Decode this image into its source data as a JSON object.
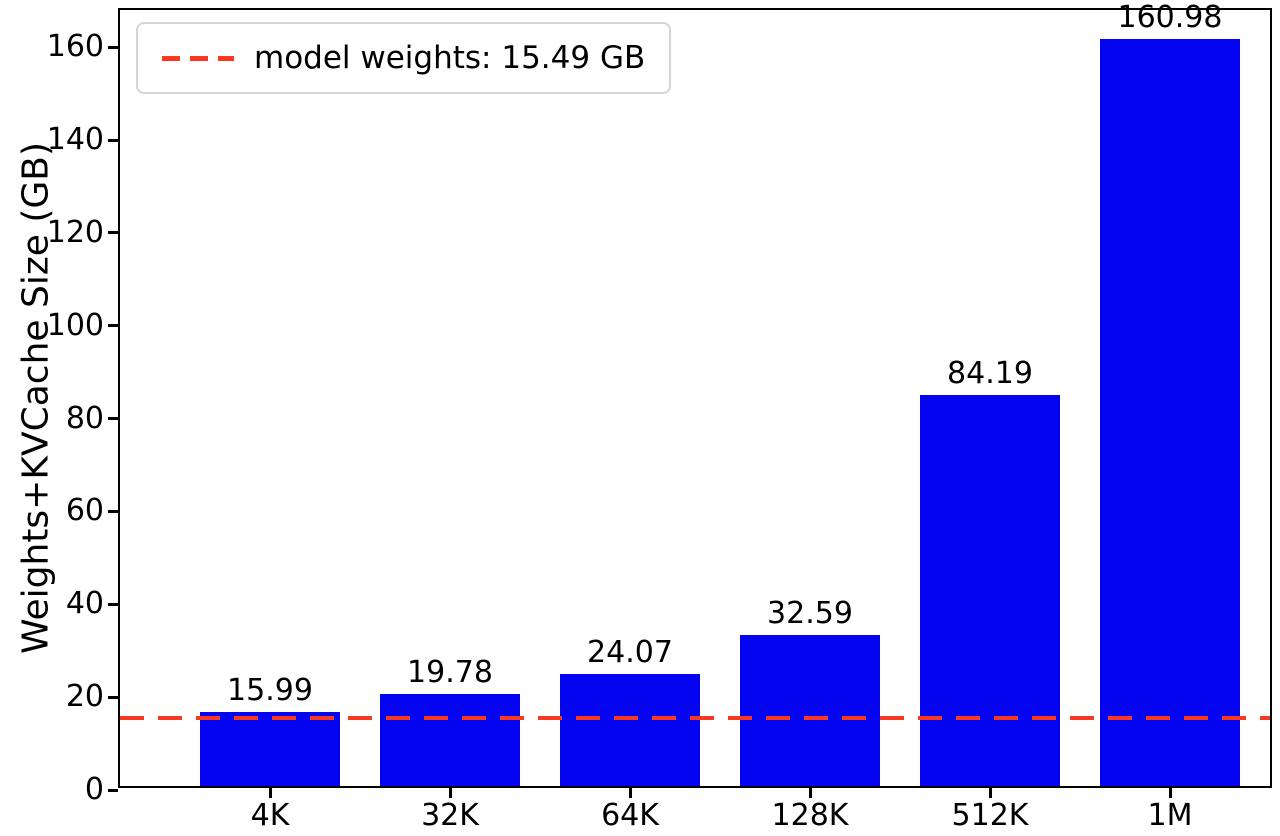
{
  "chart_data": {
    "type": "bar",
    "categories": [
      "4K",
      "32K",
      "64K",
      "128K",
      "512K",
      "1M"
    ],
    "values": [
      15.99,
      19.78,
      24.07,
      32.59,
      84.19,
      160.98
    ],
    "value_labels": [
      "15.99",
      "19.78",
      "24.07",
      "32.59",
      "84.19",
      "160.98"
    ],
    "title": "",
    "xlabel": "",
    "ylabel": "Weights+KVCache Size (GB)",
    "ylim": [
      0,
      168
    ],
    "yticks": [
      0,
      20,
      40,
      60,
      80,
      100,
      120,
      140,
      160
    ],
    "grid": false,
    "bar_color": "#0404f0",
    "reference_line": {
      "value": 15.49,
      "label": "model weights: 15.49 GB",
      "color": "#f93822",
      "style": "dashed"
    },
    "legend_position": "upper left"
  }
}
